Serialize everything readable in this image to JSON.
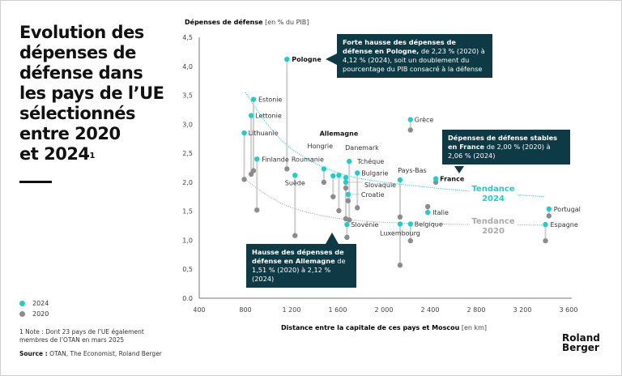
{
  "title": "Evolution des dépenses de défense dans les pays de l’UE sélectionnés entre 2020 et 2024",
  "title_lines": [
    "Evolution des",
    "dépenses de",
    "défense dans",
    "les pays de l’UE",
    "sélectionnés",
    "entre 2020",
    "et 2024"
  ],
  "title_superscript": "1",
  "legend": [
    {
      "label": "2024",
      "color": "#1ccfc9"
    },
    {
      "label": "2020",
      "color": "#8c8c8c"
    }
  ],
  "note": "1 Note : Dont 23 pays de l’UE également membres de l’OTAN en mars 2025",
  "source_label": "Source :",
  "source_text": " OTAN, The Economist, Roland Berger",
  "brand": {
    "line1": "Roland",
    "line2": "Berger"
  },
  "callouts": {
    "pologne": {
      "bold": "Forte hausse des dépenses de défense en Pologne,",
      "text": " de 2,23 % (2020) à 4,12 % (2024), soit un doublement du pourcentage du PIB consacré à la défense"
    },
    "france": {
      "bold": "Dépenses de défense stables en France",
      "text": " de 2,00 % (2020) à 2,06 % (2024)"
    },
    "allemagne": {
      "bold": "Hausse des dépenses de défense en Allemagne",
      "text": " de 1,51 % (2020) à 2,12 % (2024)"
    }
  },
  "trend_labels": {
    "t2024": [
      "Tendance",
      "2024"
    ],
    "t2020": [
      "Tendance",
      "2020"
    ]
  },
  "chart_data": {
    "type": "scatter",
    "title": "Evolution des dépenses de défense dans les pays de l’UE sélectionnés entre 2020 et 2024",
    "ylabel_bold": "Dépenses de défense",
    "ylabel_unit": " [en % du PIB]",
    "xlabel_bold": "Distance entre la capitale de ces pays et Moscou",
    "xlabel_unit": " [en km]",
    "xlim": [
      400,
      3600
    ],
    "ylim": [
      0,
      4.5
    ],
    "xticks": [
      400,
      800,
      1200,
      1600,
      2000,
      2400,
      2800,
      3200,
      3600
    ],
    "xtick_labels": [
      "400",
      "800",
      "1 200",
      "1 600",
      "2 000",
      "2 400",
      "2 800",
      "3 200",
      "3 600"
    ],
    "yticks": [
      0,
      0.5,
      1.0,
      1.5,
      2.0,
      2.5,
      3.0,
      3.5,
      4.0,
      4.5
    ],
    "ytick_labels": [
      "0.0",
      "0,5",
      "1,0",
      "1,5",
      "2,0",
      "2,5",
      "3,0",
      "3,5",
      "4,0",
      "4,5"
    ],
    "grid": false,
    "series": [
      {
        "name": "2024",
        "color": "#1ccfc9"
      },
      {
        "name": "2020",
        "color": "#8c8c8c"
      }
    ],
    "points": [
      {
        "country": "Pologne",
        "km": 1160,
        "v2024": 4.12,
        "v2020": 2.23,
        "bold": true
      },
      {
        "country": "Estonie",
        "km": 870,
        "v2024": 3.43,
        "v2020": 2.2
      },
      {
        "country": "Lettonie",
        "km": 850,
        "v2024": 3.15,
        "v2020": 2.14
      },
      {
        "country": "Lithuanie",
        "km": 790,
        "v2024": 2.85,
        "v2020": 2.05
      },
      {
        "country": "Finlande",
        "km": 900,
        "v2024": 2.4,
        "v2020": 1.52
      },
      {
        "country": "Suède",
        "km": 1230,
        "v2024": 2.12,
        "v2020": 1.08
      },
      {
        "country": "Roumanie",
        "km": 1480,
        "v2024": 2.23,
        "v2020": 2.0
      },
      {
        "country": "Hongrie",
        "km": 1560,
        "v2024": 2.11,
        "v2020": 1.75
      },
      {
        "country": "Allemagne",
        "km": 1610,
        "v2024": 2.12,
        "v2020": 1.51,
        "bold": true
      },
      {
        "country": "Danemark",
        "km": 1670,
        "v2024": 2.08,
        "v2020": 1.37
      },
      {
        "country": "Tchéque",
        "km": 1700,
        "v2024": 2.36,
        "v2020": 1.35
      },
      {
        "country": "Slovaquie",
        "km": 1670,
        "v2024": 2.0,
        "v2020": 1.9
      },
      {
        "country": "Bulgarie",
        "km": 1770,
        "v2024": 2.16,
        "v2020": 1.56
      },
      {
        "country": "Croatie",
        "km": 1690,
        "v2024": 1.79,
        "v2020": 1.68
      },
      {
        "country": "Slovénie",
        "km": 1680,
        "v2024": 1.27,
        "v2020": 1.05
      },
      {
        "country": "Pays-Bas",
        "km": 2140,
        "v2024": 2.04,
        "v2020": 1.4
      },
      {
        "country": "Luxembourg",
        "km": 2140,
        "v2024": 1.28,
        "v2020": 0.57
      },
      {
        "country": "Belgique",
        "km": 2230,
        "v2024": 1.28,
        "v2020": 0.99
      },
      {
        "country": "Italie",
        "km": 2380,
        "v2024": 1.48,
        "v2020": 1.58
      },
      {
        "country": "France",
        "km": 2450,
        "v2024": 2.06,
        "v2020": 2.0,
        "bold": true
      },
      {
        "country": "Grèce",
        "km": 2230,
        "v2024": 3.08,
        "v2020": 2.9
      },
      {
        "country": "Portugal",
        "km": 3430,
        "v2024": 1.54,
        "v2020": 1.42
      },
      {
        "country": "Espagne",
        "km": 3400,
        "v2024": 1.27,
        "v2020": 0.99
      }
    ],
    "trend_2024": [
      [
        800,
        3.55
      ],
      [
        1000,
        2.95
      ],
      [
        1200,
        2.55
      ],
      [
        1500,
        2.22
      ],
      [
        1800,
        2.05
      ],
      [
        2200,
        1.95
      ],
      [
        2700,
        1.85
      ],
      [
        3400,
        1.75
      ]
    ],
    "trend_2020": [
      [
        800,
        2.05
      ],
      [
        1000,
        1.75
      ],
      [
        1200,
        1.55
      ],
      [
        1500,
        1.4
      ],
      [
        1800,
        1.33
      ],
      [
        2200,
        1.29
      ],
      [
        2700,
        1.27
      ],
      [
        3400,
        1.26
      ]
    ]
  }
}
